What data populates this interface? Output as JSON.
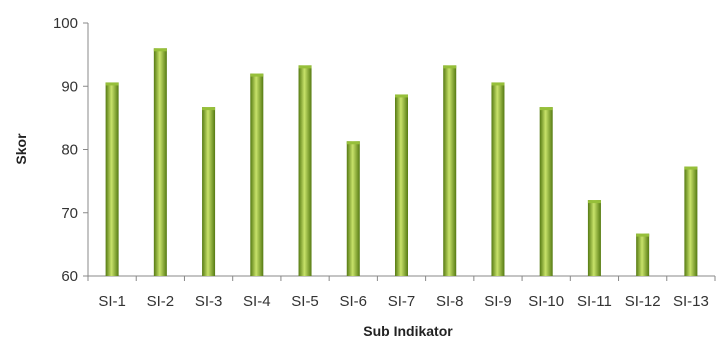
{
  "chart_data": {
    "type": "bar",
    "title": "",
    "xlabel": "Sub Indikator",
    "ylabel": "Skor",
    "categories": [
      "SI-1",
      "SI-2",
      "SI-3",
      "SI-4",
      "SI-5",
      "SI-6",
      "SI-7",
      "SI-8",
      "SI-9",
      "SI-10",
      "SI-11",
      "SI-12",
      "SI-13"
    ],
    "values": [
      90.6,
      96.0,
      86.7,
      92.0,
      93.3,
      81.3,
      88.7,
      93.3,
      90.6,
      86.7,
      72.0,
      66.7,
      77.3
    ],
    "ylim": [
      60,
      100
    ],
    "yticks": [
      60,
      70,
      80,
      90,
      100
    ],
    "grid": false,
    "legend": "none",
    "colors": {
      "bar_light": "#c8e26a",
      "bar_mid": "#96bf3a",
      "bar_dark": "#557a12",
      "axis": "#888888"
    }
  }
}
